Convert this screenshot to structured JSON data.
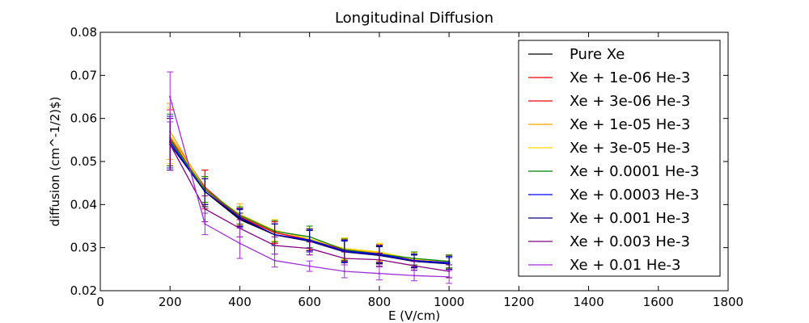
{
  "chart_data": {
    "type": "line",
    "title": "Longitudinal Diffusion",
    "xlabel": "E (V/cm)",
    "ylabel": "diffusion (cm^-1/2)$)",
    "xlim": [
      0,
      1800
    ],
    "ylim": [
      0.02,
      0.08
    ],
    "grid": false,
    "legend_position": "top-right",
    "xticks": [
      "0",
      "200",
      "400",
      "600",
      "800",
      "1000",
      "1200",
      "1400",
      "1600",
      "1800"
    ],
    "yticks": [
      "0.02",
      "0.03",
      "0.04",
      "0.05",
      "0.06",
      "0.07",
      "0.08"
    ],
    "x": [
      200,
      300,
      400,
      500,
      600,
      700,
      800,
      900,
      1000
    ],
    "series": [
      {
        "name": "Pure Xe",
        "color": "#000000",
        "values": [
          0.0545,
          0.043,
          0.0365,
          0.033,
          0.0315,
          0.0292,
          0.0283,
          0.0268,
          0.0265
        ],
        "errors": [
          0.006,
          0.0035,
          0.0015,
          0.0025,
          0.0025,
          0.0025,
          0.002,
          0.0015,
          0.0015
        ]
      },
      {
        "name": "Xe + 1e-06 He-3",
        "color": "#ff0000",
        "values": [
          0.0555,
          0.0435,
          0.037,
          0.0335,
          0.0318,
          0.0293,
          0.0285,
          0.027,
          0.0265
        ],
        "errors": [
          0.0065,
          0.0045,
          0.002,
          0.0025,
          0.0025,
          0.0025,
          0.002,
          0.0015,
          0.0015
        ]
      },
      {
        "name": "Xe + 3e-06 He-3",
        "color": "#ff0000",
        "values": [
          0.056,
          0.044,
          0.0372,
          0.0335,
          0.0318,
          0.0295,
          0.0287,
          0.027,
          0.0265
        ],
        "errors": [
          0.0075,
          0.004,
          0.002,
          0.0025,
          0.0025,
          0.0025,
          0.002,
          0.0015,
          0.0015
        ]
      },
      {
        "name": "Xe + 1e-05 He-3",
        "color": "#ffa500",
        "values": [
          0.057,
          0.0435,
          0.0377,
          0.034,
          0.032,
          0.0297,
          0.0288,
          0.0273,
          0.0268
        ],
        "errors": [
          0.0065,
          0.003,
          0.0025,
          0.0025,
          0.0025,
          0.0025,
          0.002,
          0.0015,
          0.0015
        ]
      },
      {
        "name": "Xe + 3e-05 He-3",
        "color": "#ffd700",
        "values": [
          0.056,
          0.0435,
          0.0375,
          0.034,
          0.032,
          0.0298,
          0.029,
          0.0273,
          0.0268
        ],
        "errors": [
          0.0065,
          0.003,
          0.002,
          0.0025,
          0.0025,
          0.0025,
          0.002,
          0.0015,
          0.0015
        ]
      },
      {
        "name": "Xe + 0.0001 He-3",
        "color": "#008000",
        "values": [
          0.055,
          0.0435,
          0.0375,
          0.0338,
          0.0325,
          0.0295,
          0.0285,
          0.0275,
          0.0268
        ],
        "errors": [
          0.006,
          0.003,
          0.002,
          0.0025,
          0.0025,
          0.0025,
          0.002,
          0.0015,
          0.0015
        ]
      },
      {
        "name": "Xe + 0.0003 He-3",
        "color": "#0000ff",
        "values": [
          0.0545,
          0.043,
          0.037,
          0.033,
          0.0318,
          0.0292,
          0.0285,
          0.027,
          0.0265
        ],
        "errors": [
          0.006,
          0.003,
          0.002,
          0.0025,
          0.0025,
          0.0025,
          0.002,
          0.0015,
          0.0015
        ]
      },
      {
        "name": "Xe + 0.001 He-3",
        "color": "#00008b",
        "values": [
          0.054,
          0.043,
          0.0368,
          0.033,
          0.0315,
          0.029,
          0.0282,
          0.0268,
          0.0262
        ],
        "errors": [
          0.006,
          0.003,
          0.002,
          0.0025,
          0.0025,
          0.0025,
          0.002,
          0.0015,
          0.0015
        ]
      },
      {
        "name": "Xe + 0.003 He-3",
        "color": "#800080",
        "values": [
          0.054,
          0.039,
          0.0345,
          0.0305,
          0.0298,
          0.0275,
          0.0272,
          0.0258,
          0.0245
        ],
        "errors": [
          0.006,
          0.003,
          0.002,
          0.002,
          0.0015,
          0.0015,
          0.0015,
          0.001,
          0.0015
        ]
      },
      {
        "name": "Xe + 0.01 He-3",
        "color": "#9b30d8",
        "values": [
          0.065,
          0.0355,
          0.031,
          0.027,
          0.0257,
          0.0245,
          0.024,
          0.0235,
          0.0232
        ],
        "errors": [
          0.0058,
          0.0025,
          0.0035,
          0.0015,
          0.0012,
          0.0015,
          0.0015,
          0.0012,
          0.0015
        ]
      }
    ]
  }
}
